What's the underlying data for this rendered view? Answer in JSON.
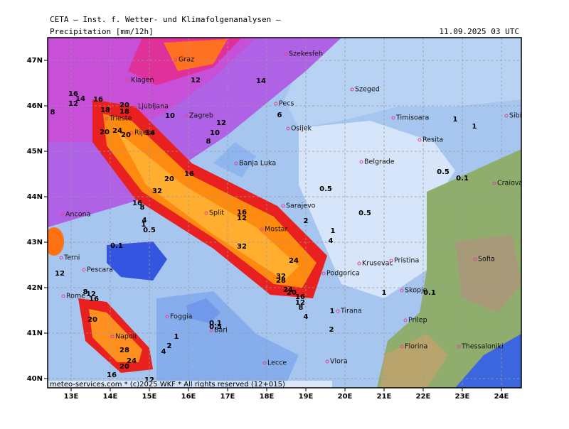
{
  "header": {
    "title": "CETA — Inst. f. Wetter- und Klimafolgenanalysen —",
    "product": "Precipitation [mm/12h]",
    "valid_time": "11.09.2025 03 UTC"
  },
  "map": {
    "lat_labels": [
      "47N",
      "46N",
      "45N",
      "44N",
      "43N",
      "42N",
      "41N",
      "40N"
    ],
    "lon_labels": [
      "13E",
      "14E",
      "15E",
      "16E",
      "17E",
      "18E",
      "19E",
      "20E",
      "21E",
      "22E",
      "23E",
      "24E"
    ],
    "cities": [
      "Graz",
      "Szekesfeh",
      "Klagen",
      "Ljubljana",
      "Zagreb",
      "Pecs",
      "Szeged",
      "Osijek",
      "Timisoara",
      "Resita",
      "Sibiu",
      "Trieste",
      "Rijeka",
      "Banja Luka",
      "Belgrade",
      "Craiova",
      "Sarajevo",
      "Ancona",
      "Split",
      "Mostar",
      "Terni",
      "Pescara",
      "Podgorica",
      "Krusevac",
      "Pristina",
      "Sofia",
      "Rome",
      "Skopje",
      "Foggia",
      "Tirana",
      "Prilep",
      "Bari",
      "Napoli",
      "Florina",
      "Thessaloniki",
      "Lecce",
      "Vlora"
    ],
    "contour_labels": [
      "14",
      "12",
      "16",
      "16",
      "14",
      "12",
      "8",
      "18",
      "20",
      "18",
      "10",
      "6",
      "12",
      "10",
      "8",
      "20",
      "24",
      "20",
      "14",
      "20",
      "16",
      "32",
      "0.5",
      "0.5",
      "0.5",
      "0.1",
      "1",
      "1",
      "16",
      "8",
      "4",
      "1",
      "0.5",
      "16",
      "12",
      "2",
      "1",
      "4",
      "32",
      "24",
      "32",
      "28",
      "24",
      "20",
      "16",
      "12",
      "8",
      "4",
      "0.1",
      "12",
      "8",
      "12",
      "16",
      "20",
      "28",
      "24",
      "20",
      "4",
      "2",
      "1",
      "0.1",
      "0.5",
      "2",
      "1",
      "1",
      "0.1",
      "16",
      "12"
    ]
  },
  "footer": "meteo-services.com * (c)2025 WKF * All rights reserved (12+015)"
}
